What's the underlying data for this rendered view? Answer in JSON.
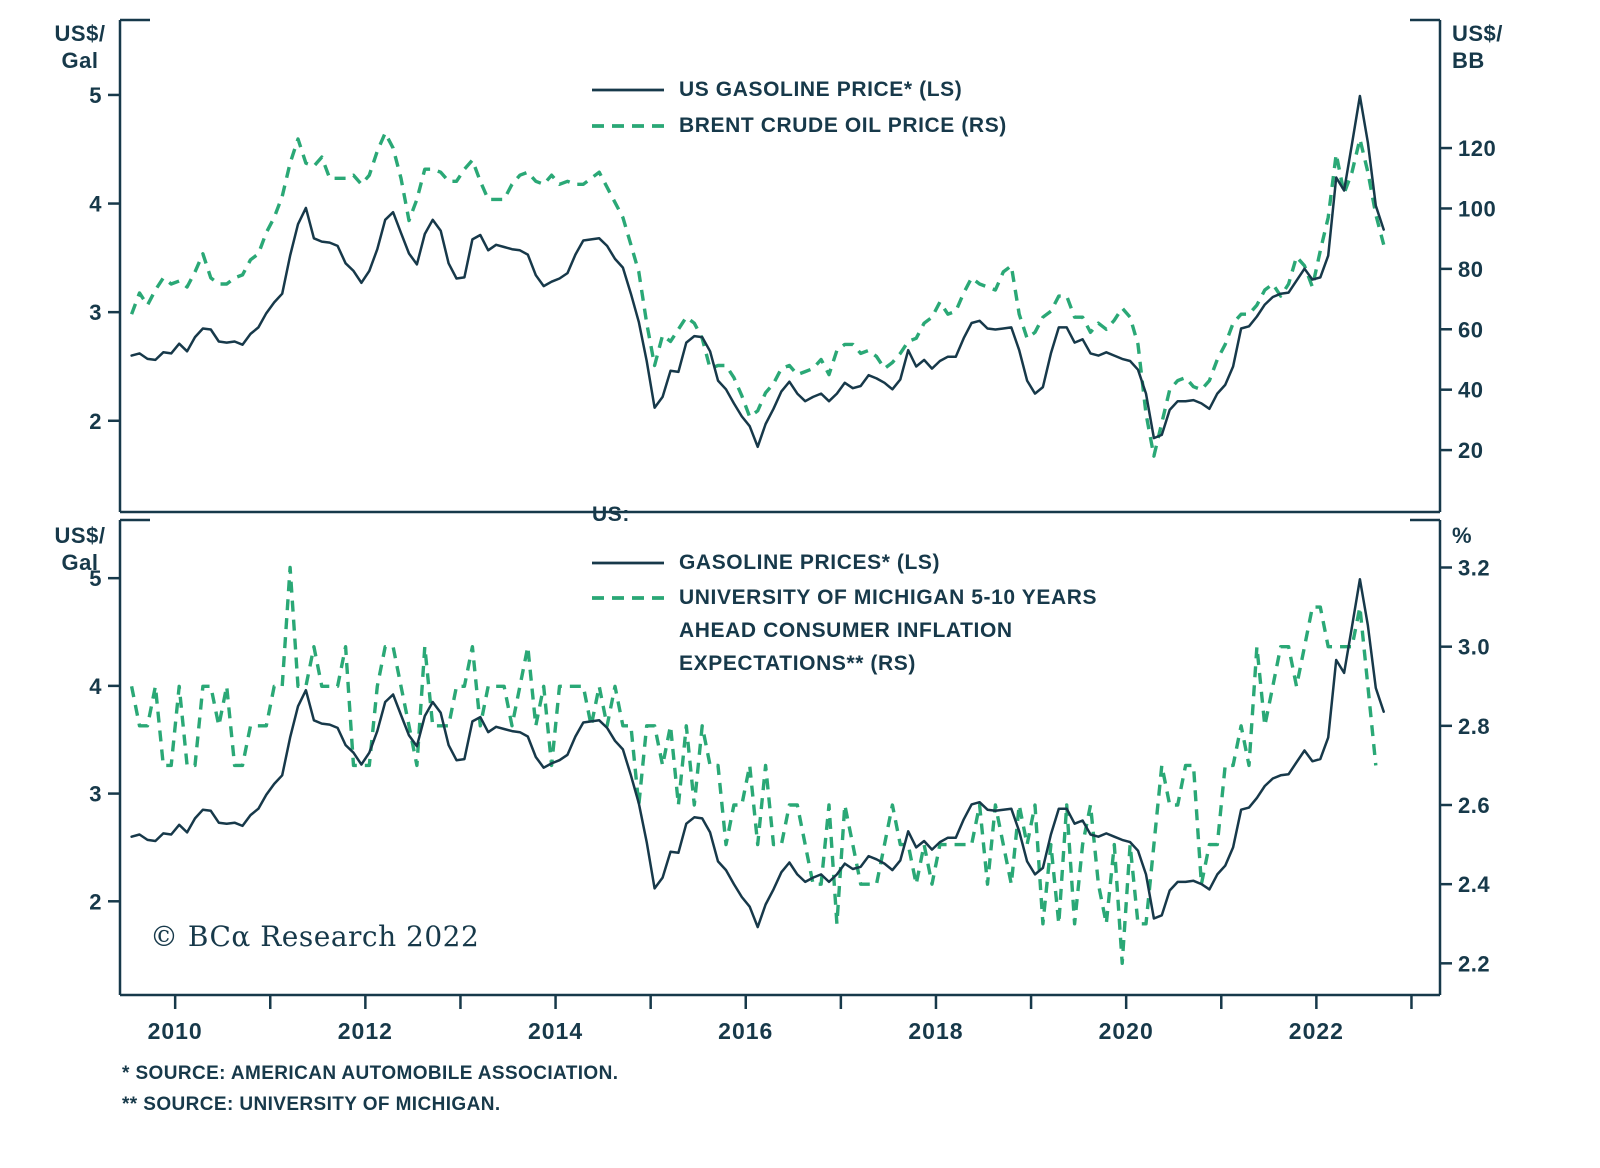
{
  "colors": {
    "ink": "#17394a",
    "green": "#2aa876"
  },
  "copyright": "© BCα Research 2022",
  "footnotes": [
    "*  SOURCE: AMERICAN AUTOMOBILE ASSOCIATION.",
    "** SOURCE: UNIVERSITY OF MICHIGAN."
  ],
  "chart_data": [
    {
      "type": "line",
      "panel": "top",
      "left_axis": {
        "unit_lines": [
          "US$/",
          "Gal"
        ],
        "ticks": [
          2,
          3,
          4,
          5
        ],
        "tick_labels": [
          "2",
          "3",
          "4",
          "5"
        ],
        "domain": [
          1.16,
          5.69
        ]
      },
      "right_axis": {
        "unit_lines": [
          "US$/",
          "BB"
        ],
        "ticks": [
          20,
          40,
          60,
          80,
          100,
          120
        ],
        "tick_labels": [
          "20",
          "40",
          "60",
          "80",
          "100",
          "120"
        ],
        "domain": [
          -0.5,
          162.4
        ]
      },
      "x_axis": {
        "domain": [
          2009.42,
          2023.3
        ],
        "tick_years": [
          2010,
          2011,
          2012,
          2013,
          2014,
          2015,
          2016,
          2017,
          2018,
          2019,
          2020,
          2021,
          2022,
          2023
        ],
        "label_years": [
          2010,
          2012,
          2014,
          2016,
          2018,
          2020,
          2022
        ],
        "show_ticks": false
      },
      "legend": [
        {
          "label": "US GASOLINE PRICE* (LS)",
          "style": "solid"
        },
        {
          "label": "BRENT CRUDE OIL PRICE (RS)",
          "style": "dashed"
        }
      ],
      "series": [
        {
          "name": "US Gasoline Price (LS, US$/Gal)",
          "data_name": "us-gasoline-price-line-top",
          "axis": "left",
          "style": "solid",
          "start": 2009.542,
          "step": 0.08333,
          "values": [
            2.6,
            2.62,
            2.57,
            2.56,
            2.63,
            2.62,
            2.71,
            2.64,
            2.77,
            2.85,
            2.84,
            2.73,
            2.72,
            2.73,
            2.7,
            2.8,
            2.86,
            2.99,
            3.09,
            3.17,
            3.52,
            3.81,
            3.96,
            3.68,
            3.65,
            3.64,
            3.61,
            3.45,
            3.38,
            3.27,
            3.38,
            3.58,
            3.85,
            3.92,
            3.73,
            3.54,
            3.44,
            3.72,
            3.85,
            3.75,
            3.45,
            3.31,
            3.32,
            3.67,
            3.71,
            3.57,
            3.62,
            3.6,
            3.58,
            3.57,
            3.53,
            3.34,
            3.24,
            3.28,
            3.31,
            3.36,
            3.53,
            3.66,
            3.67,
            3.68,
            3.61,
            3.49,
            3.41,
            3.17,
            2.91,
            2.55,
            2.12,
            2.22,
            2.46,
            2.45,
            2.72,
            2.78,
            2.77,
            2.64,
            2.37,
            2.29,
            2.16,
            2.04,
            1.95,
            1.76,
            1.97,
            2.11,
            2.27,
            2.36,
            2.25,
            2.18,
            2.22,
            2.25,
            2.18,
            2.25,
            2.35,
            2.3,
            2.32,
            2.42,
            2.39,
            2.35,
            2.29,
            2.38,
            2.65,
            2.5,
            2.56,
            2.48,
            2.55,
            2.59,
            2.59,
            2.76,
            2.9,
            2.92,
            2.85,
            2.84,
            2.85,
            2.86,
            2.65,
            2.37,
            2.25,
            2.31,
            2.62,
            2.86,
            2.86,
            2.72,
            2.75,
            2.62,
            2.6,
            2.63,
            2.6,
            2.57,
            2.55,
            2.47,
            2.25,
            1.84,
            1.87,
            2.1,
            2.18,
            2.18,
            2.19,
            2.16,
            2.11,
            2.25,
            2.33,
            2.5,
            2.85,
            2.87,
            2.96,
            3.07,
            3.14,
            3.17,
            3.18,
            3.29,
            3.4,
            3.3,
            3.32,
            3.52,
            4.24,
            4.12,
            4.55,
            4.99,
            4.56,
            3.98,
            3.76
          ]
        },
        {
          "name": "Brent Crude Oil Price (RS, US$/BB)",
          "data_name": "brent-crude-oil-price-line",
          "axis": "right",
          "style": "dashed",
          "start": 2009.542,
          "step": 0.08333,
          "values": [
            65,
            72,
            68,
            73,
            77,
            75,
            76,
            74,
            79,
            85,
            77,
            75,
            75,
            77,
            78,
            83,
            85,
            92,
            97,
            104,
            115,
            123,
            115,
            114,
            117,
            110,
            110,
            110,
            111,
            108,
            111,
            119,
            125,
            120,
            110,
            96,
            103,
            113,
            113,
            112,
            109,
            109,
            113,
            116,
            109,
            103,
            103,
            103,
            108,
            111,
            112,
            109,
            108,
            111,
            108,
            109,
            108,
            108,
            110,
            112,
            107,
            102,
            97,
            88,
            79,
            62,
            48,
            58,
            56,
            60,
            64,
            62,
            57,
            47,
            48,
            48,
            44,
            38,
            31,
            33,
            39,
            42,
            47,
            48,
            45,
            46,
            47,
            50,
            45,
            53,
            55,
            55,
            52,
            53,
            51,
            47,
            49,
            52,
            56,
            57,
            62,
            64,
            69,
            65,
            66,
            72,
            77,
            75,
            74,
            73,
            79,
            81,
            65,
            57,
            59,
            64,
            66,
            71,
            71,
            64,
            64,
            59,
            62,
            60,
            63,
            67,
            64,
            55,
            32,
            18,
            29,
            40,
            43,
            44,
            41,
            40,
            43,
            50,
            55,
            62,
            65,
            65,
            68,
            73,
            75,
            71,
            75,
            84,
            81,
            74,
            86,
            97,
            118,
            105,
            112,
            123,
            112,
            98,
            88
          ]
        }
      ]
    },
    {
      "type": "line",
      "panel": "bottom",
      "legend_title": "US:",
      "left_axis": {
        "unit_lines": [
          "US$/",
          "Gal"
        ],
        "ticks": [
          2,
          3,
          4,
          5
        ],
        "tick_labels": [
          "2",
          "3",
          "4",
          "5"
        ],
        "domain": [
          1.13,
          5.54
        ]
      },
      "right_axis": {
        "unit_lines": [
          "%"
        ],
        "ticks": [
          2.2,
          2.4,
          2.6,
          2.8,
          3.0,
          3.2
        ],
        "tick_labels": [
          "2.2",
          "2.4",
          "2.6",
          "2.8",
          "3.0",
          "3.2"
        ],
        "domain": [
          2.12,
          3.32
        ]
      },
      "x_axis": {
        "domain": [
          2009.42,
          2023.3
        ],
        "tick_years": [
          2010,
          2011,
          2012,
          2013,
          2014,
          2015,
          2016,
          2017,
          2018,
          2019,
          2020,
          2021,
          2022,
          2023
        ],
        "label_years": [
          2010,
          2012,
          2014,
          2016,
          2018,
          2020,
          2022
        ],
        "show_ticks": true
      },
      "legend": [
        {
          "label": "GASOLINE PRICES* (LS)",
          "style": "solid"
        },
        {
          "label_lines": [
            "UNIVERSITY OF MICHIGAN 5-10 YEARS",
            "AHEAD CONSUMER INFLATION",
            "EXPECTATIONS** (RS)"
          ],
          "style": "dashed"
        }
      ],
      "series": [
        {
          "name": "US Gasoline Prices (LS, US$/Gal)",
          "data_name": "us-gasoline-price-line-bottom",
          "axis": "left",
          "style": "solid",
          "start": 2009.542,
          "step": 0.08333,
          "values": [
            2.6,
            2.62,
            2.57,
            2.56,
            2.63,
            2.62,
            2.71,
            2.64,
            2.77,
            2.85,
            2.84,
            2.73,
            2.72,
            2.73,
            2.7,
            2.8,
            2.86,
            2.99,
            3.09,
            3.17,
            3.52,
            3.81,
            3.96,
            3.68,
            3.65,
            3.64,
            3.61,
            3.45,
            3.38,
            3.27,
            3.38,
            3.58,
            3.85,
            3.92,
            3.73,
            3.54,
            3.44,
            3.72,
            3.85,
            3.75,
            3.45,
            3.31,
            3.32,
            3.67,
            3.71,
            3.57,
            3.62,
            3.6,
            3.58,
            3.57,
            3.53,
            3.34,
            3.24,
            3.28,
            3.31,
            3.36,
            3.53,
            3.66,
            3.67,
            3.68,
            3.61,
            3.49,
            3.41,
            3.17,
            2.91,
            2.55,
            2.12,
            2.22,
            2.46,
            2.45,
            2.72,
            2.78,
            2.77,
            2.64,
            2.37,
            2.29,
            2.16,
            2.04,
            1.95,
            1.76,
            1.97,
            2.11,
            2.27,
            2.36,
            2.25,
            2.18,
            2.22,
            2.25,
            2.18,
            2.25,
            2.35,
            2.3,
            2.32,
            2.42,
            2.39,
            2.35,
            2.29,
            2.38,
            2.65,
            2.5,
            2.56,
            2.48,
            2.55,
            2.59,
            2.59,
            2.76,
            2.9,
            2.92,
            2.85,
            2.84,
            2.85,
            2.86,
            2.65,
            2.37,
            2.25,
            2.31,
            2.62,
            2.86,
            2.86,
            2.72,
            2.75,
            2.62,
            2.6,
            2.63,
            2.6,
            2.57,
            2.55,
            2.47,
            2.25,
            1.84,
            1.87,
            2.1,
            2.18,
            2.18,
            2.19,
            2.16,
            2.11,
            2.25,
            2.33,
            2.5,
            2.85,
            2.87,
            2.96,
            3.07,
            3.14,
            3.17,
            3.18,
            3.29,
            3.4,
            3.3,
            3.32,
            3.52,
            4.24,
            4.12,
            4.55,
            4.99,
            4.56,
            3.98,
            3.76
          ]
        },
        {
          "name": "University of Michigan 5-10 Years Ahead Consumer Inflation Expectations (RS, %)",
          "data_name": "michigan-inflation-expectations-line",
          "axis": "right",
          "style": "dashed",
          "start": 2009.542,
          "step": 0.08333,
          "values": [
            2.9,
            2.8,
            2.8,
            2.9,
            2.7,
            2.7,
            2.9,
            2.7,
            2.7,
            2.9,
            2.9,
            2.8,
            2.9,
            2.7,
            2.7,
            2.8,
            2.8,
            2.8,
            2.9,
            2.9,
            3.2,
            2.9,
            2.9,
            3.0,
            2.9,
            2.9,
            2.9,
            3.0,
            2.7,
            2.7,
            2.7,
            2.9,
            3.0,
            3.0,
            2.9,
            2.8,
            2.7,
            3.0,
            2.8,
            2.8,
            2.8,
            2.9,
            2.9,
            3.0,
            2.8,
            2.9,
            2.9,
            2.9,
            2.8,
            2.9,
            3.0,
            2.8,
            2.9,
            2.7,
            2.9,
            2.9,
            2.9,
            2.9,
            2.8,
            2.9,
            2.8,
            2.9,
            2.8,
            2.8,
            2.6,
            2.8,
            2.8,
            2.7,
            2.8,
            2.6,
            2.8,
            2.6,
            2.8,
            2.7,
            2.7,
            2.5,
            2.6,
            2.6,
            2.7,
            2.5,
            2.7,
            2.5,
            2.5,
            2.6,
            2.6,
            2.5,
            2.4,
            2.4,
            2.6,
            2.3,
            2.6,
            2.5,
            2.4,
            2.4,
            2.4,
            2.5,
            2.6,
            2.5,
            2.5,
            2.4,
            2.5,
            2.4,
            2.5,
            2.5,
            2.5,
            2.5,
            2.5,
            2.6,
            2.4,
            2.6,
            2.5,
            2.4,
            2.6,
            2.5,
            2.6,
            2.3,
            2.5,
            2.3,
            2.6,
            2.3,
            2.5,
            2.6,
            2.4,
            2.3,
            2.5,
            2.2,
            2.5,
            2.3,
            2.3,
            2.5,
            2.7,
            2.6,
            2.6,
            2.7,
            2.7,
            2.4,
            2.5,
            2.5,
            2.7,
            2.7,
            2.8,
            2.7,
            3.0,
            2.8,
            2.9,
            3.0,
            3.0,
            2.9,
            3.0,
            3.1,
            3.1,
            3.0,
            3.0,
            3.0,
            3.0,
            3.1,
            2.9,
            2.7
          ]
        }
      ]
    }
  ]
}
